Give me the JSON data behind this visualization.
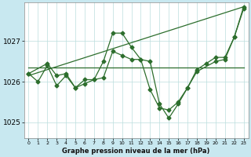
{
  "title": "Graphe pression niveau de la mer (hPa)",
  "fig_color": "#c8e8f0",
  "plot_bg_color": "#ffffff",
  "grid_color": "#bbdddd",
  "line_color": "#2d6e2d",
  "xlim": [
    -0.5,
    23.5
  ],
  "ylim": [
    1024.6,
    1027.95
  ],
  "yticks": [
    1025,
    1026,
    1027
  ],
  "xticks": [
    0,
    1,
    2,
    3,
    4,
    5,
    6,
    7,
    8,
    9,
    10,
    11,
    12,
    13,
    14,
    15,
    16,
    17,
    18,
    19,
    20,
    21,
    22,
    23
  ],
  "series1": {
    "x": [
      0,
      1,
      2,
      3,
      4,
      5,
      6,
      7,
      8,
      9,
      10,
      11,
      12,
      13,
      14,
      15,
      16,
      17,
      18,
      19,
      20,
      21,
      22,
      23
    ],
    "y": [
      1026.2,
      1026.0,
      1026.4,
      1025.9,
      1026.15,
      1025.85,
      1025.95,
      1026.05,
      1026.1,
      1026.75,
      1026.65,
      1026.55,
      1026.55,
      1025.8,
      1025.35,
      1025.3,
      1025.5,
      1025.85,
      1026.3,
      1026.45,
      1026.6,
      1026.6,
      1027.1,
      1027.8
    ]
  },
  "series2": {
    "x": [
      0,
      2,
      3,
      4,
      5,
      6,
      7,
      8,
      9,
      10,
      11,
      12,
      13,
      14,
      15,
      16,
      17,
      18,
      20,
      21,
      22,
      23
    ],
    "y": [
      1026.2,
      1026.45,
      1026.15,
      1026.2,
      1025.85,
      1026.05,
      1026.05,
      1026.5,
      1027.2,
      1027.2,
      1026.85,
      1026.55,
      1026.5,
      1025.45,
      1025.1,
      1025.45,
      1025.85,
      1026.25,
      1026.5,
      1026.55,
      1027.1,
      1027.85
    ]
  },
  "series3": {
    "x": [
      0,
      23
    ],
    "y": [
      1026.35,
      1026.35
    ]
  },
  "series4": {
    "x": [
      0,
      23
    ],
    "y": [
      1026.15,
      1027.85
    ]
  }
}
